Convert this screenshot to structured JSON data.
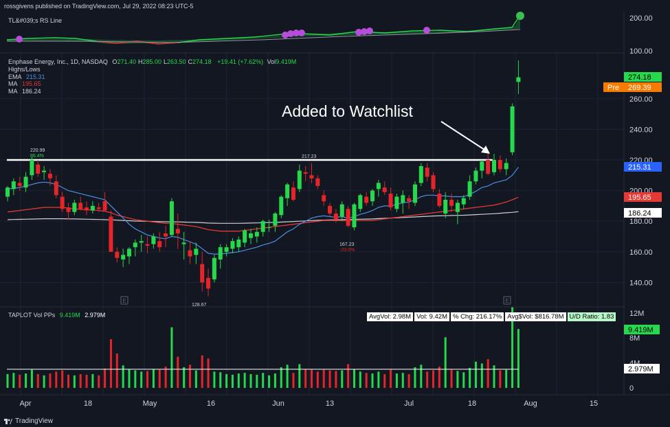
{
  "header": {
    "publisher": "rossgivens published on TradingView.com, Jul 29, 2022 08:23 UTC-5"
  },
  "rs_pane": {
    "label": "TL&#039;s RS Line",
    "yticks": [
      "200.00",
      "100.00"
    ]
  },
  "price_pane": {
    "title": "Enphase Energy, Inc., 1D, NASDAQ",
    "ohlc": [
      {
        "k": "O",
        "v": "271.40"
      },
      {
        "k": "H",
        "v": "285.00"
      },
      {
        "k": "L",
        "v": "263.50"
      },
      {
        "k": "C",
        "v": "274.18"
      }
    ],
    "change": "+19.41 (+7.62%)",
    "vol_label": "Vol",
    "vol_value": "9.419M",
    "indicators": [
      {
        "name": "Highs/Lows",
        "value": "",
        "color": "#d1d4dc"
      },
      {
        "name": "EMA",
        "value": "215.31",
        "color": "#4a90e2"
      },
      {
        "name": "MA",
        "value": "195.65",
        "color": "#e53935"
      },
      {
        "name": "MA",
        "value": "186.24",
        "color": "#d1d4dc"
      }
    ],
    "yticks": [
      "260.00",
      "240.00",
      "220.00",
      "200.00",
      "180.00",
      "160.00",
      "140.00"
    ],
    "badges": [
      {
        "label": "",
        "value": "274.18",
        "bg": "#26d94c",
        "fg": "#000000"
      },
      {
        "label": "Pre",
        "value": "269.39",
        "bg": "#f57c00",
        "fg": "#ffffff"
      },
      {
        "label": "",
        "value": "215.31",
        "bg": "#2962ff",
        "fg": "#ffffff"
      },
      {
        "label": "",
        "value": "195.65",
        "bg": "#e53935",
        "fg": "#ffffff"
      },
      {
        "label": "",
        "value": "186.24",
        "bg": "#ffffff",
        "fg": "#000000"
      }
    ],
    "annotation": "Added to Watchlist",
    "high_label": {
      "value": "220.99",
      "pct": "86.4%"
    },
    "mid_label": {
      "value": "217.23"
    },
    "low_label_1": {
      "value": "167.23",
      "pct": "-23.0%"
    },
    "low_label_2": {
      "value": "128.67"
    },
    "earnings_marker": "E"
  },
  "vol_pane": {
    "title": "TAPLOT Vol PPs",
    "v1": "9.419M",
    "v2": "2.979M",
    "stats": [
      "AvgVol: 2.98M",
      "Vol: 9.42M",
      "% Chg: 216.17%",
      "Avg$Vol: $816.78M",
      "U/D Ratio: 1.83"
    ],
    "yticks": [
      "12M",
      "8M",
      "4M",
      "0"
    ],
    "badges": [
      {
        "value": "9.419M",
        "bg": "#26d94c",
        "fg": "#000000"
      },
      {
        "value": "2.979M",
        "bg": "#ffffff",
        "fg": "#000000"
      }
    ]
  },
  "x_axis": [
    "Apr",
    "18",
    "May",
    "16",
    "Jun",
    "13",
    "Jul",
    "18",
    "Aug",
    "15"
  ],
  "footer": {
    "brand": "TradingView"
  },
  "colors": {
    "up": "#26d94c",
    "down": "#e5252a",
    "bg": "#131722",
    "grid": "#1f2433",
    "ema": "#4a90e2",
    "ma50": "#e53935",
    "ma200": "#cfd1d6"
  },
  "chart_data": {
    "type": "candlestick",
    "title": "Enphase Energy, Inc., 1D, NASDAQ",
    "ylim": [
      127,
      290
    ],
    "dates": [
      "Mar 28",
      "Mar 29",
      "Mar 30",
      "Mar 31",
      "Apr 1",
      "Apr 4",
      "Apr 5",
      "Apr 6",
      "Apr 7",
      "Apr 8",
      "Apr 11",
      "Apr 12",
      "Apr 13",
      "Apr 14",
      "Apr 18",
      "Apr 19",
      "Apr 20",
      "Apr 21",
      "Apr 22",
      "Apr 25",
      "Apr 26",
      "Apr 27",
      "Apr 28",
      "Apr 29",
      "May 2",
      "May 3",
      "May 4",
      "May 5",
      "May 6",
      "May 9",
      "May 10",
      "May 11",
      "May 12",
      "May 13",
      "May 16",
      "May 17",
      "May 18",
      "May 19",
      "May 20",
      "May 23",
      "May 24",
      "May 25",
      "May 26",
      "May 27",
      "May 31",
      "Jun 1",
      "Jun 2",
      "Jun 3",
      "Jun 6",
      "Jun 7",
      "Jun 8",
      "Jun 9",
      "Jun 10",
      "Jun 13",
      "Jun 14",
      "Jun 15",
      "Jun 16",
      "Jun 17",
      "Jun 21",
      "Jun 22",
      "Jun 23",
      "Jun 24",
      "Jun 27",
      "Jun 28",
      "Jun 29",
      "Jun 30",
      "Jul 1",
      "Jul 5",
      "Jul 6",
      "Jul 7",
      "Jul 8",
      "Jul 11",
      "Jul 12",
      "Jul 13",
      "Jul 14",
      "Jul 15",
      "Jul 18",
      "Jul 19",
      "Jul 20",
      "Jul 21",
      "Jul 22",
      "Jul 25",
      "Jul 26",
      "Jul 27",
      "Jul 28"
    ],
    "ohlc": [
      [
        196,
        203,
        193,
        202
      ],
      [
        201,
        208,
        197,
        206
      ],
      [
        205,
        209,
        200,
        203
      ],
      [
        202,
        212,
        199,
        209
      ],
      [
        210,
        222,
        207,
        220
      ],
      [
        217,
        220,
        209,
        211
      ],
      [
        212,
        216,
        207,
        213
      ],
      [
        211,
        214,
        203,
        208
      ],
      [
        206,
        210,
        195,
        197
      ],
      [
        196,
        199,
        186,
        188
      ],
      [
        189,
        192,
        181,
        186
      ],
      [
        186,
        194,
        184,
        192
      ],
      [
        192,
        196,
        187,
        188
      ],
      [
        189,
        193,
        184,
        187
      ],
      [
        187,
        193,
        185,
        190
      ],
      [
        189,
        192,
        186,
        188
      ],
      [
        193,
        199,
        187,
        187
      ],
      [
        183,
        187,
        160,
        160
      ],
      [
        160,
        163,
        153,
        156
      ],
      [
        155,
        162,
        150,
        158
      ],
      [
        157,
        163,
        152,
        162
      ],
      [
        163,
        168,
        157,
        166
      ],
      [
        166,
        171,
        160,
        167
      ],
      [
        165,
        170,
        159,
        164
      ],
      [
        165,
        172,
        162,
        170
      ],
      [
        167,
        173,
        160,
        163
      ],
      [
        172,
        177,
        163,
        170
      ],
      [
        171,
        195,
        170,
        193
      ],
      [
        175,
        185,
        162,
        172
      ],
      [
        165,
        173,
        155,
        166
      ],
      [
        161,
        167,
        152,
        157
      ],
      [
        158,
        166,
        152,
        162
      ],
      [
        152,
        160,
        134,
        140
      ],
      [
        143,
        149,
        131,
        136
      ],
      [
        142,
        158,
        140,
        156
      ],
      [
        155,
        165,
        149,
        163
      ],
      [
        160,
        165,
        157,
        163
      ],
      [
        162,
        169,
        159,
        167
      ],
      [
        163,
        170,
        160,
        168
      ],
      [
        166,
        175,
        163,
        174
      ],
      [
        169,
        175,
        165,
        172
      ],
      [
        170,
        176,
        166,
        173
      ],
      [
        173,
        181,
        170,
        180
      ],
      [
        176,
        181,
        173,
        176
      ],
      [
        177,
        186,
        173,
        185
      ],
      [
        184,
        197,
        182,
        196
      ],
      [
        195,
        205,
        190,
        204
      ],
      [
        202,
        206,
        193,
        194
      ],
      [
        201,
        217,
        199,
        213
      ],
      [
        212,
        216,
        206,
        211
      ],
      [
        210,
        218,
        205,
        208
      ],
      [
        208,
        210,
        201,
        203
      ],
      [
        197,
        200,
        190,
        193
      ],
      [
        190,
        192,
        183,
        185
      ],
      [
        185,
        188,
        179,
        181
      ],
      [
        183,
        193,
        180,
        191
      ],
      [
        188,
        190,
        176,
        177
      ],
      [
        176,
        192,
        174,
        191
      ],
      [
        188,
        198,
        186,
        197
      ],
      [
        196,
        199,
        190,
        192
      ],
      [
        193,
        201,
        190,
        200
      ],
      [
        201,
        207,
        196,
        205
      ],
      [
        202,
        206,
        197,
        199
      ],
      [
        198,
        202,
        187,
        189
      ],
      [
        188,
        198,
        186,
        196
      ],
      [
        192,
        200,
        185,
        197
      ],
      [
        195,
        197,
        188,
        193
      ],
      [
        192,
        206,
        190,
        204
      ],
      [
        205,
        218,
        203,
        216
      ],
      [
        215,
        218,
        206,
        209
      ],
      [
        210,
        212,
        199,
        201
      ],
      [
        198,
        201,
        189,
        190
      ],
      [
        185,
        199,
        182,
        194
      ],
      [
        194,
        198,
        186,
        190
      ],
      [
        186,
        194,
        178,
        192
      ],
      [
        191,
        197,
        188,
        195
      ],
      [
        196,
        210,
        194,
        206
      ],
      [
        206,
        215,
        204,
        213
      ],
      [
        213,
        220,
        208,
        219
      ],
      [
        220,
        225,
        210,
        211
      ],
      [
        212,
        224,
        210,
        220
      ],
      [
        220,
        223,
        212,
        214
      ],
      [
        214,
        221,
        210,
        218
      ],
      [
        225,
        257,
        223,
        255
      ],
      [
        271,
        285,
        263,
        274
      ]
    ],
    "volume_m": [
      2.2,
      2.4,
      2.1,
      2.3,
      2.9,
      2.2,
      2.0,
      2.3,
      2.6,
      2.8,
      2.1,
      2.0,
      2.2,
      2.1,
      2.2,
      2.0,
      3.1,
      7.8,
      5.5,
      3.6,
      3.0,
      2.8,
      2.6,
      2.7,
      3.0,
      2.9,
      3.4,
      9.7,
      5.0,
      3.3,
      3.7,
      2.8,
      5.2,
      4.7,
      2.6,
      2.5,
      2.2,
      2.1,
      2.3,
      2.4,
      2.2,
      2.1,
      2.4,
      2.0,
      2.3,
      3.3,
      3.7,
      2.4,
      3.8,
      3.0,
      2.9,
      2.6,
      2.9,
      2.8,
      2.7,
      2.8,
      3.8,
      3.0,
      2.6,
      2.4,
      2.3,
      2.6,
      2.2,
      2.9,
      2.3,
      2.4,
      2.2,
      3.3,
      3.7,
      2.6,
      2.8,
      3.4,
      8.1,
      2.9,
      2.7,
      2.5,
      3.2,
      4.2,
      3.9,
      4.6,
      3.6,
      2.8,
      2.9,
      12.9,
      9.419
    ],
    "ema": [
      201,
      201.5,
      202,
      203,
      204,
      205,
      205.5,
      205,
      204,
      202,
      200,
      199,
      198,
      197,
      196,
      195,
      194,
      190,
      186,
      182,
      178,
      175,
      173,
      171,
      170,
      169,
      168.5,
      170,
      169.5,
      168,
      166.5,
      165,
      162,
      159,
      158.5,
      158.5,
      159,
      159.5,
      160,
      161,
      162,
      163,
      164.5,
      165.5,
      167,
      170,
      173,
      175,
      178,
      180,
      182,
      183,
      183.5,
      183,
      182.5,
      183,
      182,
      183,
      184.5,
      185.5,
      187,
      189,
      190,
      190,
      191,
      192,
      192.5,
      194,
      196,
      197,
      197,
      196.5,
      196.5,
      196,
      196,
      196,
      197.5,
      199.5,
      202,
      203,
      205,
      206,
      207,
      210,
      215.31
    ],
    "ma50": [
      186,
      186.5,
      187,
      187.5,
      188,
      188.5,
      189,
      189,
      189,
      189,
      188.5,
      188,
      187.8,
      187.5,
      187.2,
      187,
      186.5,
      185.5,
      184,
      183,
      182,
      181,
      180.5,
      180,
      179.5,
      179,
      178.5,
      178.5,
      178,
      177.5,
      177,
      176.5,
      175.5,
      174.5,
      174,
      173.5,
      173.5,
      173.5,
      173.5,
      174,
      174.5,
      175,
      175.5,
      176,
      176.5,
      177,
      177.5,
      178,
      178.5,
      179,
      179.5,
      180,
      180.5,
      180.5,
      180.5,
      180.5,
      180.5,
      180.5,
      180.5,
      180.5,
      180.5,
      181,
      181.5,
      182,
      182.5,
      183,
      183.5,
      184,
      184.5,
      185,
      185.5,
      186,
      186.5,
      187,
      187.5,
      188,
      188.5,
      189,
      189.5,
      190,
      190.5,
      191.5,
      192.5,
      194,
      195.65
    ],
    "ma200": [
      181,
      181.1,
      181.2,
      181.3,
      181.4,
      181.5,
      181.6,
      181.6,
      181.6,
      181.6,
      181.5,
      181.5,
      181.4,
      181.3,
      181.2,
      181.1,
      181,
      180.9,
      180.7,
      180.5,
      180.3,
      180.1,
      180,
      179.9,
      179.8,
      179.7,
      179.6,
      179.6,
      179.5,
      179.4,
      179.3,
      179.2,
      179,
      178.8,
      178.7,
      178.6,
      178.6,
      178.6,
      178.6,
      178.7,
      178.8,
      178.9,
      179,
      179.1,
      179.2,
      179.4,
      179.6,
      179.8,
      180,
      180.2,
      180.4,
      180.6,
      180.7,
      180.8,
      180.9,
      181,
      181.1,
      181.2,
      181.3,
      181.4,
      181.5,
      181.7,
      181.9,
      182,
      182.2,
      182.4,
      182.6,
      182.8,
      183,
      183.2,
      183.4,
      183.5,
      183.6,
      183.7,
      183.8,
      183.9,
      184.1,
      184.3,
      184.5,
      184.7,
      184.9,
      185.2,
      185.5,
      185.8,
      186.24
    ],
    "resistance": 220,
    "volume_avg_m": 2.979
  }
}
